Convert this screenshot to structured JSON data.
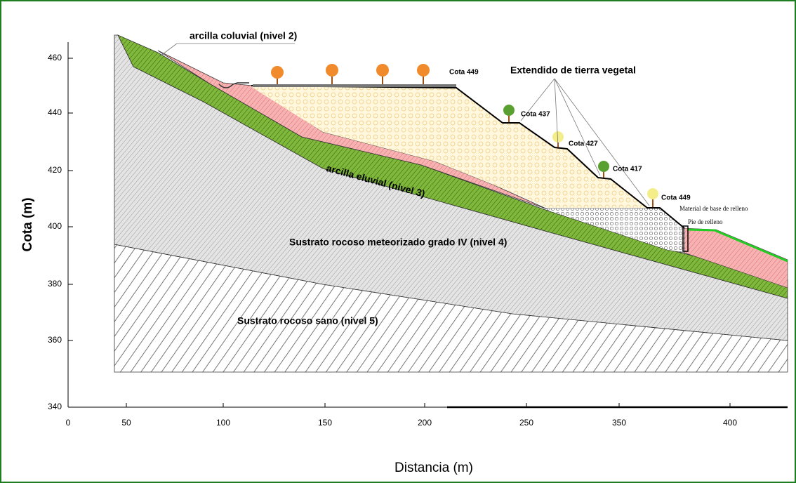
{
  "axes": {
    "y_label": "Cota (m)",
    "x_label": "Distancia (m)",
    "y_ticks": [
      460,
      440,
      420,
      400,
      380,
      360,
      340
    ],
    "x_ticks": [
      0,
      50,
      100,
      150,
      200,
      250,
      350,
      400
    ]
  },
  "labels": {
    "coluvial": "arcilla coluvial (nivel 2)",
    "eluvial": "arcilla eluvial (nivel 3)",
    "nivel4": "Sustrato rocoso meteorizado grado IV (nivel 4)",
    "nivel5": "Sustrato rocoso sano (nivel 5)",
    "vegetal": "Extendido de tierra vegetal",
    "base": "Material de base de relleno",
    "pie": "Pie de relleno"
  },
  "cotas": [
    "Cota 449",
    "Cota 437",
    "Cota 427",
    "Cota 417",
    "Cota 449"
  ]
}
